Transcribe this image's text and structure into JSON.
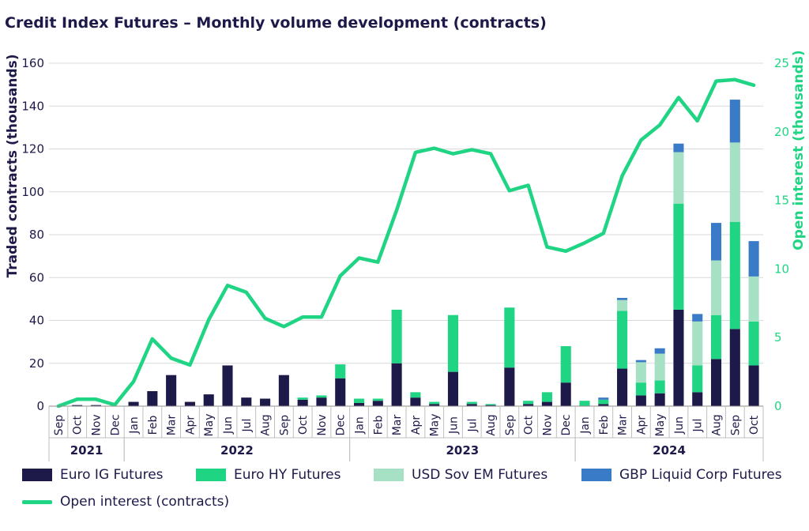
{
  "chart_data": {
    "type": "bar",
    "stacked": true,
    "title": "Credit Index Futures – Monthly volume development (contracts)",
    "ylabel": "Traded contracts (thousands)",
    "y2label": "Open interest (thousands)",
    "ylim": [
      0,
      160
    ],
    "yticks": [
      0,
      20,
      40,
      60,
      80,
      100,
      120,
      140,
      160
    ],
    "y2lim": [
      0,
      25
    ],
    "y2ticks": [
      0,
      5,
      10,
      15,
      20,
      25
    ],
    "grid": true,
    "legend_position": "bottom",
    "categories": [
      "Sep",
      "Oct",
      "Nov",
      "Dec",
      "Jan",
      "Feb",
      "Mar",
      "Apr",
      "May",
      "Jun",
      "Jul",
      "Aug",
      "Sep",
      "Oct",
      "Nov",
      "Dec",
      "Jan",
      "Feb",
      "Mar",
      "Apr",
      "May",
      "Jun",
      "Jul",
      "Aug",
      "Sep",
      "Oct",
      "Nov",
      "Dec",
      "Jan",
      "Feb",
      "Mar",
      "Apr",
      "May",
      "Jun",
      "Jul",
      "Aug",
      "Sep",
      "Oct"
    ],
    "years": [
      {
        "label": "2021",
        "start": 0,
        "end": 3
      },
      {
        "label": "2022",
        "start": 4,
        "end": 15
      },
      {
        "label": "2023",
        "start": 16,
        "end": 27
      },
      {
        "label": "2024",
        "start": 28,
        "end": 37
      }
    ],
    "series": [
      {
        "name": "Euro IG Futures",
        "color": "#1d1a4a",
        "values": [
          0,
          0.5,
          0.5,
          0,
          2,
          7,
          14.5,
          2,
          5.5,
          19,
          4,
          3.5,
          14.5,
          3,
          4,
          13,
          1.5,
          2.5,
          20,
          4,
          1,
          16,
          1,
          0.5,
          18,
          1,
          2,
          11,
          0,
          1,
          17.5,
          5,
          6,
          45,
          6.5,
          22,
          36,
          19
        ]
      },
      {
        "name": "Euro HY Futures",
        "color": "#1fd483",
        "values": [
          0,
          0,
          0,
          0,
          0,
          0,
          0,
          0,
          0,
          0,
          0,
          0,
          0,
          1,
          1,
          6.5,
          2,
          1,
          25,
          2.5,
          1,
          26.5,
          1,
          0.5,
          28,
          1.5,
          4.5,
          17,
          2.5,
          2,
          27,
          6,
          6,
          49.5,
          12.5,
          20.5,
          50,
          20.5
        ]
      },
      {
        "name": "USD Sov EM Futures",
        "color": "#a6e0c5",
        "values": [
          0,
          0,
          0,
          0,
          0,
          0,
          0,
          0,
          0,
          0,
          0,
          0,
          0,
          0,
          0,
          0,
          0,
          0,
          0,
          0,
          0,
          0,
          0,
          0,
          0,
          0,
          0,
          0,
          0,
          0,
          5,
          9.5,
          12.5,
          24,
          20.5,
          25.5,
          37,
          21
        ]
      },
      {
        "name": "GBP Liquid Corp Futures",
        "color": "#3a7bc8",
        "values": [
          0,
          0,
          0,
          0,
          0,
          0,
          0,
          0,
          0,
          0,
          0,
          0,
          0,
          0,
          0,
          0,
          0,
          0,
          0,
          0,
          0,
          0,
          0,
          0,
          0,
          0,
          0,
          0,
          0,
          1,
          1,
          1,
          2.5,
          4,
          3.5,
          17.5,
          20,
          16.5
        ]
      }
    ],
    "line": {
      "name": "Open interest (contracts)",
      "color": "#1fd483",
      "axis": "right",
      "values": [
        0,
        0.5,
        0.5,
        0.1,
        1.8,
        4.9,
        3.5,
        3,
        6.3,
        8.8,
        8.3,
        6.4,
        5.8,
        6.5,
        6.5,
        9.5,
        10.8,
        10.5,
        14.3,
        18.5,
        18.8,
        18.4,
        18.7,
        18.4,
        15.7,
        16.1,
        11.6,
        11.3,
        11.9,
        12.6,
        16.8,
        19.4,
        20.5,
        22.5,
        20.8,
        23.7,
        23.8,
        23.4
      ]
    }
  },
  "legend": {
    "euro_ig": "Euro IG Futures",
    "euro_hy": "Euro HY Futures",
    "usd_sov": "USD Sov EM Futures",
    "gbp_liquid": "GBP Liquid Corp Futures",
    "open_interest": "Open interest (contracts)"
  },
  "colors": {
    "navy": "#1d1a4a",
    "green": "#1fd483",
    "light_green": "#a6e0c5",
    "blue": "#3a7bc8",
    "grid": "#d9d9d9"
  }
}
